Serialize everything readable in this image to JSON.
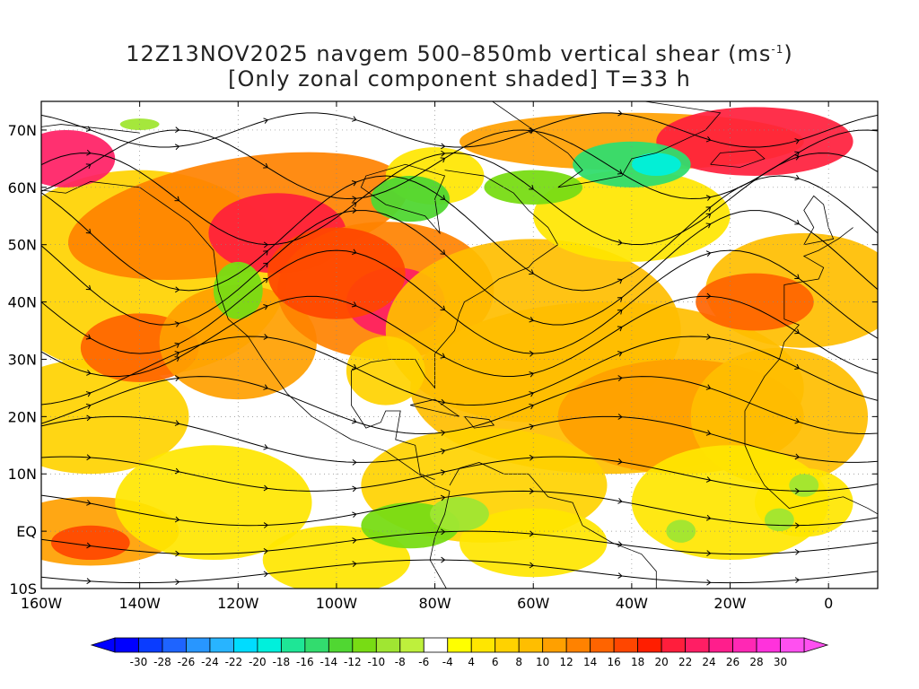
{
  "title": {
    "line1_prefix": "12Z13NOV2025 navgem 500–850mb vertical shear (ms",
    "line1_sup": "-1",
    "line1_suffix": ")",
    "line2": "[Only zonal component shaded] T=33 h"
  },
  "map": {
    "lat_labels": [
      "70N",
      "60N",
      "50N",
      "40N",
      "30N",
      "20N",
      "10N",
      "EQ",
      "10S"
    ],
    "lon_labels": [
      "160W",
      "140W",
      "120W",
      "100W",
      "80W",
      "60W",
      "40W",
      "20W",
      "0"
    ],
    "lat_range": [
      -10,
      75
    ],
    "lon_range": [
      -160,
      10
    ]
  },
  "colorbar": {
    "labels": [
      "-30",
      "-28",
      "-26",
      "-24",
      "-22",
      "-20",
      "-18",
      "-16",
      "-14",
      "-12",
      "-10",
      "-8",
      "-6",
      "-4",
      "4",
      "6",
      "8",
      "10",
      "12",
      "14",
      "16",
      "18",
      "20",
      "22",
      "24",
      "26",
      "28",
      "30"
    ],
    "colors": [
      "#0000ff",
      "#0a3cff",
      "#1e64ff",
      "#2896ff",
      "#28b4ff",
      "#00dcff",
      "#00f0dc",
      "#1ee696",
      "#32dc6e",
      "#50d732",
      "#78dc14",
      "#a0e632",
      "#bef03c",
      "#ffffff",
      "#ffff00",
      "#ffe600",
      "#ffd200",
      "#ffbe00",
      "#ffa000",
      "#ff8200",
      "#ff6400",
      "#ff4600",
      "#ff1e00",
      "#ff1e3c",
      "#ff1e64",
      "#ff1e8c",
      "#ff28b4",
      "#ff32dc",
      "#ff50f0"
    ]
  }
}
